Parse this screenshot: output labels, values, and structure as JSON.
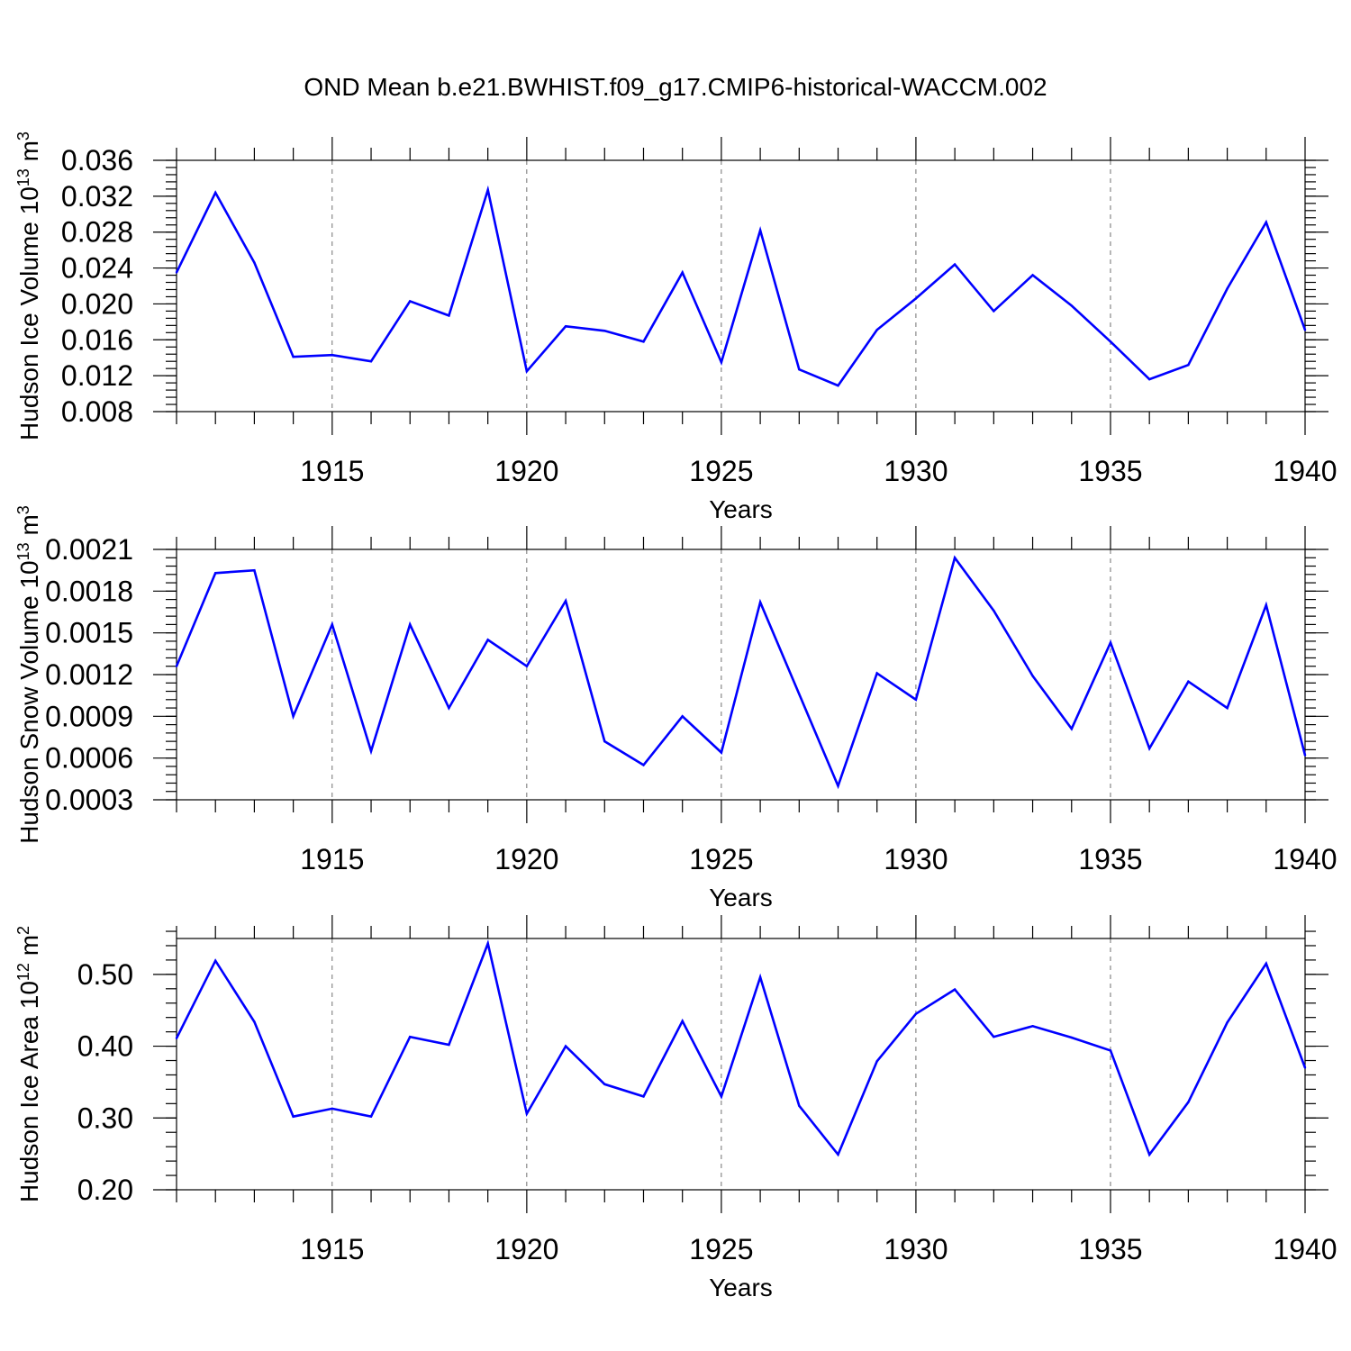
{
  "title": "OND Mean b.e21.BWHIST.f09_g17.CMIP6-historical-WACCM.002",
  "colors": {
    "series": "#0000ff"
  },
  "chart_data": [
    {
      "type": "line",
      "ylabel": {
        "text": "Hudson Ice Volume 10",
        "sup": "13",
        "unit": " m",
        "unit_sup": "3"
      },
      "xlabel": "Years",
      "xlim": [
        1911,
        1940
      ],
      "xticks": [
        1915,
        1920,
        1925,
        1930,
        1935,
        1940
      ],
      "ylim": [
        0.008,
        0.036
      ],
      "yticks": [
        "0.008",
        "0.012",
        "0.016",
        "0.020",
        "0.024",
        "0.028",
        "0.032",
        "0.036"
      ],
      "y_minor_step": 0.0008,
      "grid": "x-dashed",
      "x": [
        1911,
        1912,
        1913,
        1914,
        1915,
        1916,
        1917,
        1918,
        1919,
        1920,
        1921,
        1922,
        1923,
        1924,
        1925,
        1926,
        1927,
        1928,
        1929,
        1930,
        1931,
        1932,
        1933,
        1934,
        1935,
        1936,
        1937,
        1938,
        1939,
        1940
      ],
      "series": [
        {
          "values": [
            0.0235,
            0.0324,
            0.0246,
            0.0141,
            0.0143,
            0.0136,
            0.0203,
            0.0187,
            0.0327,
            0.0125,
            0.0175,
            0.017,
            0.0158,
            0.0235,
            0.0135,
            0.0282,
            0.0127,
            0.0109,
            0.0171,
            0.0206,
            0.0244,
            0.0192,
            0.0232,
            0.0198,
            0.0158,
            0.0116,
            0.0132,
            0.0217,
            0.0291,
            0.0171
          ]
        }
      ]
    },
    {
      "type": "line",
      "ylabel": {
        "text": "Hudson Snow Volume 10",
        "sup": "13",
        "unit": " m",
        "unit_sup": "3"
      },
      "xlabel": "Years",
      "xlim": [
        1911,
        1940
      ],
      "xticks": [
        1915,
        1920,
        1925,
        1930,
        1935,
        1940
      ],
      "ylim": [
        0.0003,
        0.0021
      ],
      "yticks": [
        "0.0003",
        "0.0006",
        "0.0009",
        "0.0012",
        "0.0015",
        "0.0018",
        "0.0021"
      ],
      "y_minor_step": 6e-05,
      "grid": "x-dashed",
      "x": [
        1911,
        1912,
        1913,
        1914,
        1915,
        1916,
        1917,
        1918,
        1919,
        1920,
        1921,
        1922,
        1923,
        1924,
        1925,
        1926,
        1927,
        1928,
        1929,
        1930,
        1931,
        1932,
        1933,
        1934,
        1935,
        1936,
        1937,
        1938,
        1939,
        1940
      ],
      "series": [
        {
          "values": [
            0.00126,
            0.00193,
            0.00195,
            0.0009,
            0.00156,
            0.00065,
            0.00156,
            0.00096,
            0.00145,
            0.00126,
            0.00173,
            0.00072,
            0.00055,
            0.0009,
            0.00064,
            0.00172,
            0.00106,
            0.0004,
            0.00121,
            0.00102,
            0.00204,
            0.00166,
            0.00119,
            0.00081,
            0.00143,
            0.00067,
            0.00115,
            0.00096,
            0.0017,
            0.00062
          ]
        }
      ]
    },
    {
      "type": "line",
      "ylabel": {
        "text": "Hudson Ice Area 10",
        "sup": "12",
        "unit": " m",
        "unit_sup": "2"
      },
      "xlabel": "Years",
      "xlim": [
        1911,
        1940
      ],
      "xticks": [
        1915,
        1920,
        1925,
        1930,
        1935,
        1940
      ],
      "ylim": [
        0.2,
        0.55
      ],
      "yticks": [
        "0.20",
        "0.30",
        "0.40",
        "0.50"
      ],
      "y_minor_step": 0.02,
      "grid": "x-dashed",
      "x": [
        1911,
        1912,
        1913,
        1914,
        1915,
        1916,
        1917,
        1918,
        1919,
        1920,
        1921,
        1922,
        1923,
        1924,
        1925,
        1926,
        1927,
        1928,
        1929,
        1930,
        1931,
        1932,
        1933,
        1934,
        1935,
        1936,
        1937,
        1938,
        1939,
        1940
      ],
      "series": [
        {
          "values": [
            0.411,
            0.519,
            0.434,
            0.302,
            0.313,
            0.302,
            0.413,
            0.402,
            0.543,
            0.306,
            0.4,
            0.347,
            0.33,
            0.435,
            0.33,
            0.496,
            0.317,
            0.249,
            0.379,
            0.445,
            0.479,
            0.413,
            0.428,
            0.412,
            0.394,
            0.249,
            0.322,
            0.433,
            0.515,
            0.37
          ]
        }
      ]
    }
  ]
}
